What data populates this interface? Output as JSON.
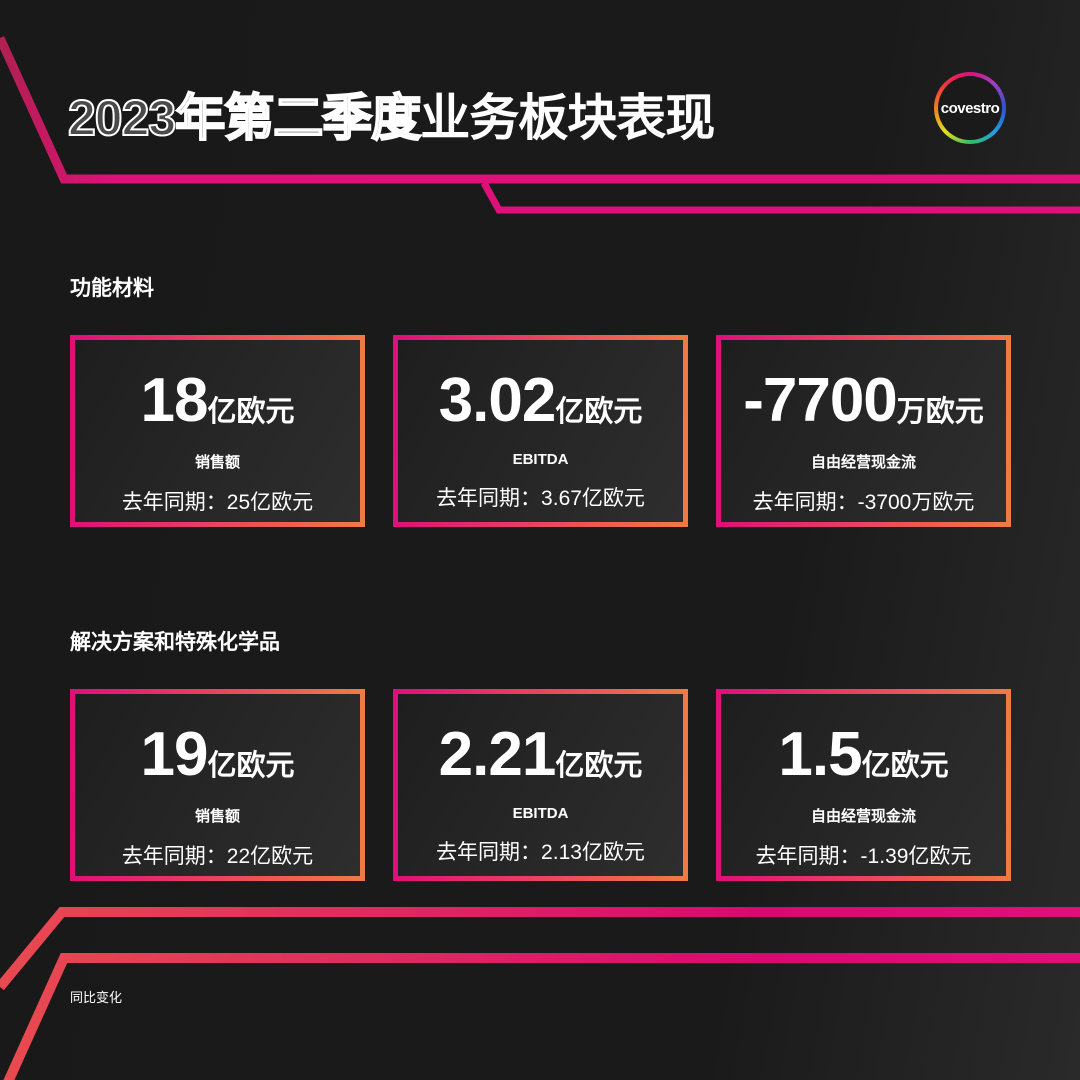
{
  "header": {
    "title_outline": "2023年第二季度",
    "title_solid": "业务板块表现",
    "logo_text": "covestro"
  },
  "colors": {
    "accent_pink": "#e0107a",
    "accent_orange": "#f07a45",
    "background": "#1a1a1a"
  },
  "sections": [
    {
      "title": "功能材料",
      "cards": [
        {
          "value": "18",
          "unit": "亿欧元",
          "metric": "销售额",
          "prior": "去年同期：25亿欧元"
        },
        {
          "value": "3.02",
          "unit": "亿欧元",
          "metric": "EBITDA",
          "prior": "去年同期：3.67亿欧元"
        },
        {
          "value": "-7700",
          "unit": "万欧元",
          "metric": "自由经营现金流",
          "prior": "去年同期：-3700万欧元"
        }
      ]
    },
    {
      "title": "解决方案和特殊化学品",
      "cards": [
        {
          "value": "19",
          "unit": "亿欧元",
          "metric": "销售额",
          "prior": "去年同期：22亿欧元"
        },
        {
          "value": "2.21",
          "unit": "亿欧元",
          "metric": "EBITDA",
          "prior": "去年同期：2.13亿欧元"
        },
        {
          "value": "1.5",
          "unit": "亿欧元",
          "metric": "自由经营现金流",
          "prior": "去年同期：-1.39亿欧元"
        }
      ]
    }
  ],
  "footer": {
    "note": "同比变化"
  }
}
